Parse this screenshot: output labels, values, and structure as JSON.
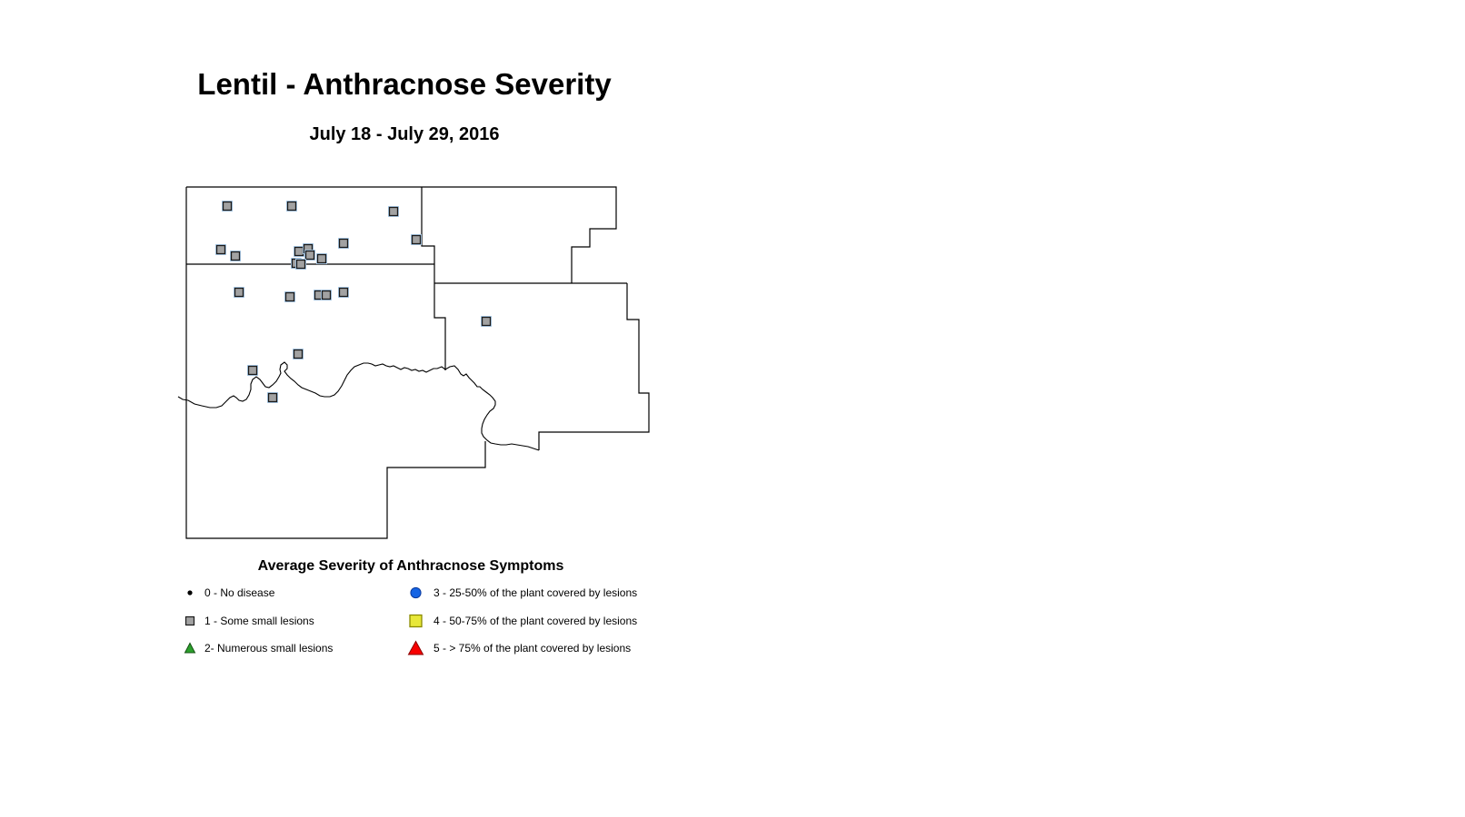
{
  "header": {
    "title": "Lentil - Anthracnose Severity",
    "subtitle": "July 18 - July 29, 2016"
  },
  "legend": {
    "title": "Average Severity of Anthracnose Symptoms",
    "items": [
      {
        "symbol": "black-dot",
        "color": "#000000",
        "label": "0 - No disease"
      },
      {
        "symbol": "gray-square",
        "color": "#a2a2a2",
        "label": "1 - Some small lesions"
      },
      {
        "symbol": "green-triangle",
        "color": "#2ca02c",
        "label": "2- Numerous small lesions"
      },
      {
        "symbol": "blue-circle",
        "color": "#1564e4",
        "label": "3 - 25-50% of the plant covered by lesions"
      },
      {
        "symbol": "yellow-square",
        "color": "#e8e83a",
        "label": "4 - 50-75% of the plant covered by lesions"
      },
      {
        "symbol": "red-triangle",
        "color": "#f80000",
        "label": "5 - > 75% of the plant covered by lesions"
      }
    ]
  },
  "map": {
    "marker_symbol": "gray-square",
    "marker_meaning": "1 - Some small lesions",
    "marker_color": "#a2a2a2",
    "marker_halo_color": "#aed0ee",
    "boundary_color": "#000000",
    "markers": [
      [
        250,
        227
      ],
      [
        321,
        227
      ],
      [
        433,
        233
      ],
      [
        458,
        264
      ],
      [
        243,
        275
      ],
      [
        259,
        282
      ],
      [
        378,
        268
      ],
      [
        329,
        277
      ],
      [
        339,
        274
      ],
      [
        341,
        281
      ],
      [
        354,
        285
      ],
      [
        326,
        290
      ],
      [
        331,
        291
      ],
      [
        263,
        322
      ],
      [
        319,
        327
      ],
      [
        351,
        325
      ],
      [
        359,
        325
      ],
      [
        378,
        322
      ],
      [
        535,
        354
      ],
      [
        328,
        390
      ],
      [
        278,
        408
      ],
      [
        300,
        438
      ]
    ]
  }
}
